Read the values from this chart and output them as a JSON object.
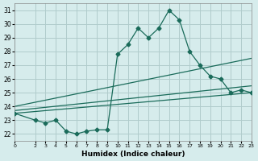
{
  "title": "",
  "xlabel": "Humidex (Indice chaleur)",
  "ylabel": "",
  "bg_color": "#d6ecec",
  "grid_color": "#b0cccc",
  "line_color": "#1a6b5a",
  "xlim": [
    0,
    23
  ],
  "ylim": [
    21.5,
    31.5
  ],
  "yticks": [
    22,
    23,
    24,
    25,
    26,
    27,
    28,
    29,
    30,
    31
  ],
  "xticks": [
    0,
    2,
    3,
    4,
    5,
    6,
    7,
    8,
    9,
    10,
    11,
    12,
    13,
    14,
    15,
    16,
    17,
    18,
    19,
    20,
    21,
    22,
    23
  ],
  "series": {
    "main": {
      "x": [
        0,
        2,
        3,
        4,
        5,
        6,
        7,
        8,
        9,
        10,
        11,
        12,
        13,
        14,
        15,
        16,
        17,
        18,
        19,
        20,
        21,
        22,
        23
      ],
      "y": [
        23.5,
        23.0,
        22.8,
        23.0,
        22.2,
        22.0,
        22.2,
        22.3,
        22.3,
        27.8,
        28.5,
        29.7,
        29.0,
        29.7,
        31.0,
        30.3,
        28.0,
        27.0,
        26.2,
        26.0,
        25.0,
        25.2,
        25.0
      ]
    },
    "line1": {
      "x": [
        0,
        23
      ],
      "y": [
        23.5,
        25.0
      ]
    },
    "line2": {
      "x": [
        0,
        23
      ],
      "y": [
        24.0,
        27.5
      ]
    },
    "line3": {
      "x": [
        0,
        23
      ],
      "y": [
        23.7,
        25.5
      ]
    }
  }
}
